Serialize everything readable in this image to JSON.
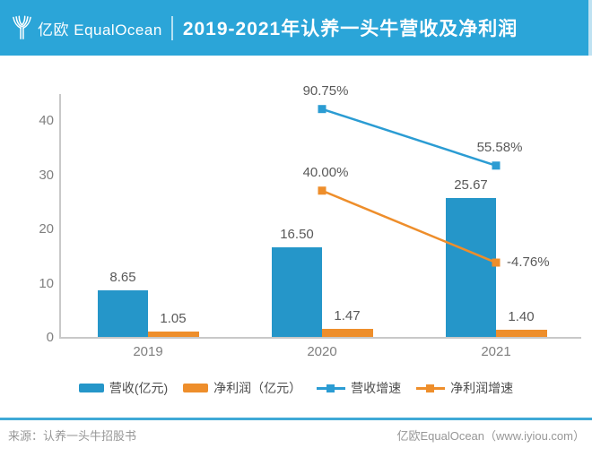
{
  "header": {
    "logo_cn": "亿欧",
    "logo_en": "EqualOcean",
    "title": "2019-2021年认养一头牛营收及净利润"
  },
  "chart_data": {
    "type": "bar+line",
    "title": "2019-2021年认养一头牛营收及净利润",
    "categories": [
      "2019",
      "2020",
      "2021"
    ],
    "bar_series": [
      {
        "name": "营收(亿元)",
        "color": "#2596C9",
        "values": [
          8.65,
          16.5,
          25.67
        ],
        "labels": [
          "8.65",
          "16.50",
          "25.67"
        ]
      },
      {
        "name": "净利润（亿元）",
        "color": "#EE8E2B",
        "values": [
          1.05,
          1.47,
          1.4
        ],
        "labels": [
          "1.05",
          "1.47",
          "1.40"
        ]
      }
    ],
    "line_series": [
      {
        "name": "营收增速",
        "color": "#2B9CD3",
        "points": [
          {
            "category": "2020",
            "value": 90.75,
            "label": "90.75%",
            "label_pos": "above"
          },
          {
            "category": "2021",
            "value": 55.58,
            "label": "55.58%",
            "label_pos": "above"
          }
        ]
      },
      {
        "name": "净利润增速",
        "color": "#EE8E2B",
        "points": [
          {
            "category": "2020",
            "value": 40.0,
            "label": "40.00%",
            "label_pos": "above"
          },
          {
            "category": "2021",
            "value": -4.76,
            "label": "-4.76%",
            "label_pos": "right"
          }
        ]
      }
    ],
    "yticks": [
      0,
      10,
      20,
      30,
      40
    ],
    "ylim": [
      0,
      45
    ],
    "xlabel": "",
    "ylabel": "",
    "grid": false,
    "legend_position": "bottom",
    "secondary_axis_visible": false
  },
  "footer": {
    "source": "来源：认养一头牛招股书",
    "brand": "亿欧EqualOcean（www.iyiou.com）"
  }
}
